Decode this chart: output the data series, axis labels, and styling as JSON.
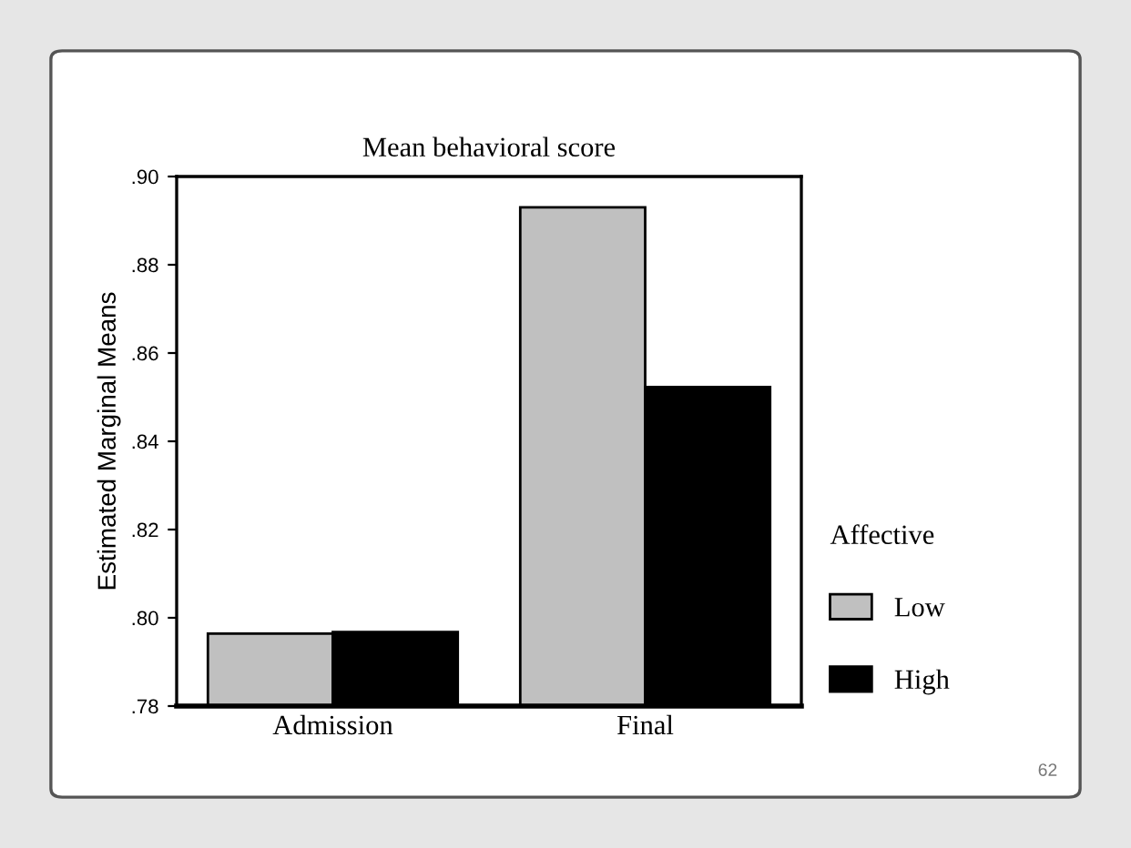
{
  "chart_data": {
    "type": "bar",
    "title": "Mean behavioral score",
    "ylabel": "Estimated Marginal Means",
    "categories": [
      "Admission",
      "Final"
    ],
    "series": [
      {
        "name": "Low",
        "color": "#c0c0c0",
        "values": [
          0.7964,
          0.893
        ]
      },
      {
        "name": "High",
        "color": "#000000",
        "values": [
          0.7968,
          0.8523
        ]
      }
    ],
    "ylim": [
      0.78,
      0.9
    ],
    "yticks": [
      {
        "value": 0.78,
        "label": ".78"
      },
      {
        "value": 0.8,
        "label": ".80"
      },
      {
        "value": 0.82,
        "label": ".82"
      },
      {
        "value": 0.84,
        "label": ".84"
      },
      {
        "value": 0.86,
        "label": ".86"
      },
      {
        "value": 0.88,
        "label": ".88"
      },
      {
        "value": 0.9,
        "label": ".90"
      }
    ],
    "legend_title": "Affective",
    "legend": "right",
    "grid": false,
    "annotations": [
      "62"
    ]
  }
}
